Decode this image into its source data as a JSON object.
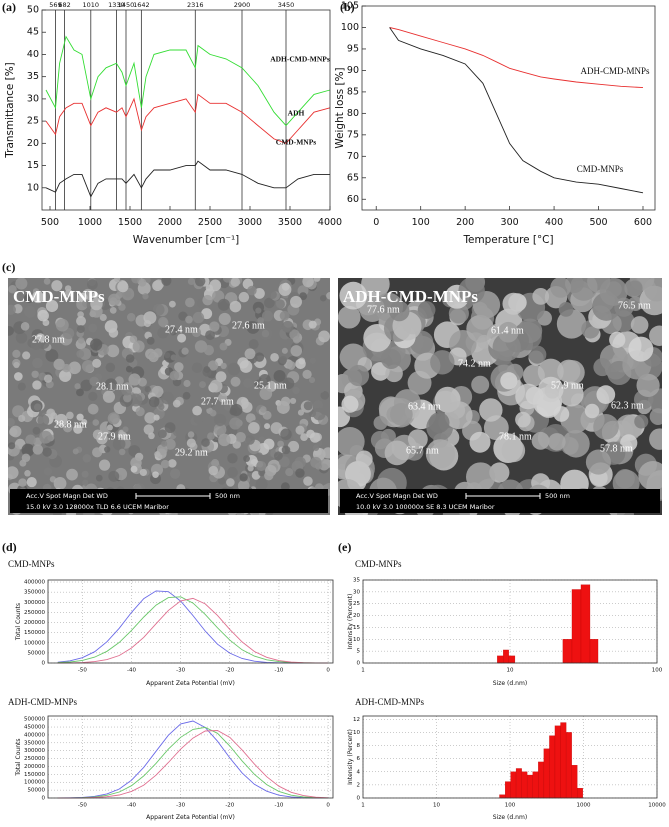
{
  "figure": {
    "panel_labels": [
      "(a)",
      "(b)",
      "(c)",
      "(d)",
      "(e)"
    ],
    "sem_images": [
      {
        "title": "CMD-MNPs",
        "size_labels": [
          "27.8 nm",
          "27.4 nm",
          "27.6 nm",
          "28.1 nm",
          "25.1 nm",
          "27.7 nm",
          "28.8 nm",
          "27.9 nm",
          "29.2 nm"
        ],
        "info_header": "Acc.V  Spot Magn  Det  WD",
        "scale": "500 nm",
        "info": "15.0 kV 3.0   128000x TLD 6.6   UCEM Maribor"
      },
      {
        "title": "ADH-CMD-MNPs",
        "size_labels": [
          "77.6 nm",
          "76.5 nm",
          "61.4 nm",
          "74.2 nm",
          "57.9 nm",
          "62.3 nm",
          "63.4 nm",
          "78.1 nm",
          "65.7 nm",
          "57.8 nm"
        ],
        "info_header": "Acc.V  Spot Magn  Det  WD",
        "scale": "500 nm",
        "info": "10.0 kV 3.0   100000x SE   8.3   UCEM Maribor"
      }
    ]
  },
  "chart_data": [
    {
      "type": "line",
      "x_label": "Wavenumber [cm⁻¹]",
      "y_label": "Transmittance [%]",
      "x": [
        450,
        569,
        620,
        700,
        800,
        900,
        1010,
        1100,
        1200,
        1330,
        1400,
        1450,
        1550,
        1642,
        1700,
        1800,
        2000,
        2200,
        2316,
        2350,
        2500,
        2700,
        2900,
        3100,
        3300,
        3450,
        3600,
        3800,
        4000
      ],
      "series": [
        {
          "name": "ADH-CMD-MNPs",
          "color": "#33dd33",
          "values": [
            32,
            28,
            38,
            44,
            41,
            40,
            30,
            35,
            37,
            38,
            36,
            33,
            38,
            28,
            35,
            40,
            41,
            41,
            37,
            42,
            40,
            39,
            37,
            33,
            27,
            24,
            27,
            31,
            32
          ]
        },
        {
          "name": "ADH",
          "color": "#e83030",
          "values": [
            25,
            22,
            26,
            28,
            29,
            29,
            24,
            27,
            28,
            27,
            28,
            26,
            30,
            23,
            26,
            28,
            29,
            30,
            27,
            31,
            29,
            29,
            27,
            24,
            21,
            20,
            23,
            27,
            28
          ]
        },
        {
          "name": "CMD-MNPs",
          "color": "#222222",
          "values": [
            10,
            9,
            11,
            12,
            13,
            13,
            8,
            11,
            12,
            12,
            12,
            11,
            13,
            10,
            12,
            14,
            14,
            15,
            15,
            16,
            14,
            14,
            13,
            11,
            10,
            10,
            12,
            13,
            13
          ]
        }
      ],
      "xlim": [
        400,
        4000
      ],
      "xticks": [
        500,
        1000,
        1500,
        2000,
        2500,
        3000,
        3500,
        4000
      ],
      "ylim": [
        5,
        50
      ],
      "yticks": [
        10,
        15,
        20,
        25,
        30,
        35,
        40,
        45,
        50
      ],
      "grid": false,
      "peak_lines": [
        569,
        682,
        1010,
        1330,
        1450,
        1642,
        2316,
        2900,
        3450
      ]
    },
    {
      "type": "line",
      "x_label": "Temperature [°C]",
      "y_label": "Weight loss  [%]",
      "x": [
        30,
        50,
        100,
        150,
        200,
        240,
        270,
        300,
        330,
        370,
        400,
        450,
        500,
        550,
        600
      ],
      "series": [
        {
          "name": "ADH-CMD-MNPs",
          "color": "#e83030",
          "values": [
            100,
            99.5,
            98,
            96.5,
            95,
            93.5,
            92,
            90.5,
            89.6,
            88.5,
            88,
            87.3,
            86.8,
            86.3,
            86
          ]
        },
        {
          "name": "CMD-MNPs",
          "color": "#222222",
          "values": [
            100,
            97,
            95,
            93.5,
            91.5,
            87,
            80,
            73,
            69,
            66.5,
            65,
            64,
            63.5,
            62.5,
            61.5
          ]
        }
      ],
      "xlim": [
        -32,
        627
      ],
      "xticks": [
        0,
        100,
        200,
        300,
        400,
        500,
        600
      ],
      "ylim": [
        57.5,
        105
      ],
      "yticks": [
        60,
        65,
        70,
        75,
        80,
        85,
        90,
        95,
        100,
        105
      ],
      "grid": false
    },
    {
      "type": "line",
      "title": "CMD-MNPs",
      "x_label": "Apparent Zeta Potential (mV)",
      "y_label": "Total Counts",
      "x": [
        -55,
        -52.5,
        -50,
        -47.5,
        -45,
        -42.5,
        -40,
        -37.5,
        -35,
        -32.5,
        -30,
        -27.5,
        -25,
        -22.5,
        -20,
        -17.5,
        -15,
        -12.5,
        -10,
        -7.5,
        -5,
        -2.5,
        0
      ],
      "series": [
        {
          "color": "#6a6ae8",
          "values": [
            4000,
            11000,
            26000,
            56000,
            105000,
            172000,
            250000,
            318000,
            356000,
            352000,
            306000,
            234000,
            158000,
            93000,
            49000,
            22000,
            9000,
            3000,
            1000,
            0,
            0,
            0,
            0
          ]
        },
        {
          "color": "#6ac86a",
          "values": [
            2000,
            5000,
            13000,
            29000,
            58000,
            102000,
            161000,
            227000,
            286000,
            323000,
            327000,
            296000,
            240000,
            174000,
            113000,
            65000,
            34000,
            16000,
            7000,
            2500,
            1000,
            0,
            0
          ]
        },
        {
          "color": "#e07090",
          "values": [
            0,
            700,
            2000,
            7000,
            17000,
            37000,
            74000,
            127000,
            194000,
            260000,
            307000,
            319000,
            292000,
            235000,
            166000,
            104000,
            57000,
            28000,
            12000,
            4500,
            1400,
            400,
            0
          ]
        }
      ],
      "xlim": [
        -57,
        1
      ],
      "xticks": [
        -50,
        -40,
        -30,
        -20,
        -10,
        0
      ],
      "ylim": [
        0,
        410000
      ],
      "yticks": [
        0,
        50000,
        100000,
        150000,
        200000,
        250000,
        300000,
        350000,
        400000
      ],
      "grid": true
    },
    {
      "type": "line",
      "title": "ADH-CMD-MNPs",
      "x_label": "Apparent Zeta Potential (mV)",
      "y_label": "Total Counts",
      "x": [
        -55,
        -52.5,
        -50,
        -47.5,
        -45,
        -42.5,
        -40,
        -37.5,
        -35,
        -32.5,
        -30,
        -27.5,
        -25,
        -22.5,
        -20,
        -17.5,
        -15,
        -12.5,
        -10,
        -7.5,
        -5,
        -2.5,
        0
      ],
      "series": [
        {
          "color": "#6a6ae8",
          "values": [
            0,
            1000,
            3000,
            11000,
            26000,
            57000,
            113000,
            195000,
            297000,
            398000,
            470000,
            488000,
            447000,
            360000,
            254000,
            159000,
            87000,
            43000,
            18000,
            7000,
            2000,
            600,
            0
          ]
        },
        {
          "color": "#6ac86a",
          "values": [
            0,
            800,
            2000,
            7000,
            17000,
            38000,
            78000,
            140000,
            220000,
            310000,
            385000,
            435000,
            448000,
            410000,
            330000,
            235000,
            150000,
            85000,
            42000,
            18000,
            7000,
            2000,
            500
          ]
        },
        {
          "color": "#e07090",
          "values": [
            0,
            0,
            800,
            3000,
            8000,
            19000,
            42000,
            82000,
            145000,
            225000,
            310000,
            380000,
            425000,
            428000,
            385000,
            305000,
            215000,
            135000,
            75000,
            36000,
            15000,
            5000,
            1500
          ]
        }
      ],
      "xlim": [
        -57,
        1
      ],
      "xticks": [
        -50,
        -40,
        -30,
        -20,
        -10,
        0
      ],
      "ylim": [
        0,
        520000
      ],
      "yticks": [
        0,
        50000,
        100000,
        150000,
        200000,
        250000,
        300000,
        350000,
        400000,
        450000,
        500000
      ],
      "grid": true
    },
    {
      "type": "histogram",
      "title": "CMD-MNPs",
      "x_label": "Size (d.nm)",
      "y_label": "Intensity (Percent)",
      "color": "#ee1111",
      "bins": [
        8.2,
        9,
        9.8,
        10.8,
        22.9,
        26.4,
        30.4,
        35,
        39.7
      ],
      "values": [
        3,
        5.5,
        3,
        0,
        10,
        31,
        33,
        10
      ],
      "log_x": true,
      "xlim": [
        1,
        100
      ],
      "xticks": [
        1,
        10,
        100
      ],
      "ylim": [
        0,
        35
      ],
      "yticks": [
        0,
        5,
        10,
        15,
        20,
        25,
        30,
        35
      ],
      "grid": true
    },
    {
      "type": "histogram",
      "title": "ADH-CMD-MNPs",
      "x_label": "Size (d.nm)",
      "y_label": "Intensity (Percent)",
      "color": "#ee1111",
      "bins": [
        72,
        86,
        102,
        121,
        144,
        171,
        204,
        243,
        289,
        344,
        409,
        487,
        580,
        690,
        821,
        977
      ],
      "values": [
        0.5,
        2.5,
        4,
        4.5,
        4,
        3.5,
        4,
        5.5,
        7.5,
        9.5,
        11,
        11.5,
        10,
        5,
        1.5
      ],
      "log_x": true,
      "xlim": [
        1,
        10000
      ],
      "xticks": [
        1,
        10,
        100,
        1000,
        10000
      ],
      "ylim": [
        0,
        12.5
      ],
      "yticks": [
        0,
        2,
        4,
        6,
        8,
        10,
        12
      ],
      "grid": true
    }
  ]
}
